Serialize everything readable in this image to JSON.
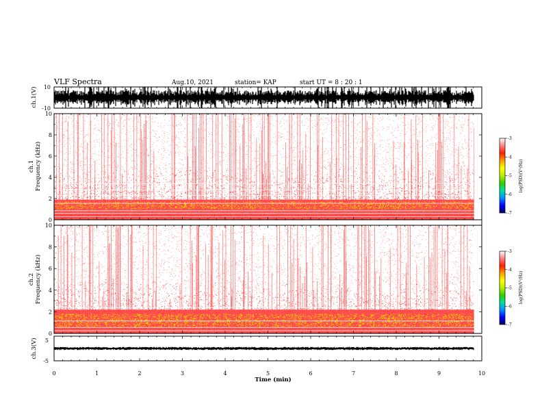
{
  "header": {
    "title": "VLF Spectra",
    "date": "Aug.10, 2021",
    "station": "station= KAP",
    "start": "start  UT =   8  : 20 : 1"
  },
  "chart_data": {
    "type": "heatmap",
    "time_axis": {
      "label": "Time  (min)",
      "range": [
        0,
        10
      ],
      "ticks": [
        "0",
        "1",
        "2",
        "3",
        "4",
        "5",
        "6",
        "7",
        "8",
        "9",
        "10"
      ],
      "data_end": 9.82
    },
    "panels": [
      {
        "name": "waveform-ch1",
        "type": "line",
        "ylabel": "ch.1(V)",
        "ylim": [
          -10,
          10
        ],
        "ytick_labels": [
          "10",
          "-10"
        ]
      },
      {
        "name": "spectrogram-ch1",
        "type": "heatmap",
        "ylabel_top": "ch.1",
        "ylabel": "Frequency  (kHz)",
        "ylim": [
          0,
          10
        ],
        "ytick_labels": [
          "0",
          "2",
          "4",
          "6",
          "8",
          "10"
        ],
        "colorbar": {
          "label": "log(PSD)(V²/Hz)",
          "range": [
            -7,
            -3
          ],
          "tick_labels": [
            "-3",
            "-4",
            "-5",
            "-6",
            "-7"
          ],
          "colors": [
            "#000060",
            "#0000ff",
            "#0090ff",
            "#00e0a0",
            "#30d000",
            "#b8f000",
            "#ffff00",
            "#ffa000",
            "#ff2000",
            "#ff8080",
            "#ffffff"
          ]
        }
      },
      {
        "name": "spectrogram-ch2",
        "type": "heatmap",
        "ylabel_top": "ch.2",
        "ylabel": "Frequency  (kHz)",
        "ylim": [
          0,
          10
        ],
        "ytick_labels": [
          "0",
          "2",
          "4",
          "6",
          "8",
          "10"
        ],
        "colorbar": {
          "label": "log(PSD)(V²/Hz)",
          "range": [
            -7,
            -3
          ],
          "tick_labels": [
            "-3",
            "-4",
            "-5",
            "-6",
            "-7"
          ],
          "colors": [
            "#000060",
            "#0000ff",
            "#0090ff",
            "#00e0a0",
            "#30d000",
            "#b8f000",
            "#ffff00",
            "#ffa000",
            "#ff2000",
            "#ff8080",
            "#ffffff"
          ]
        }
      },
      {
        "name": "waveform-ch3",
        "type": "line",
        "ylabel": "ch.3(V)",
        "ylim": [
          -5,
          5
        ],
        "ytick_labels": [
          "5",
          "-5"
        ]
      }
    ]
  }
}
